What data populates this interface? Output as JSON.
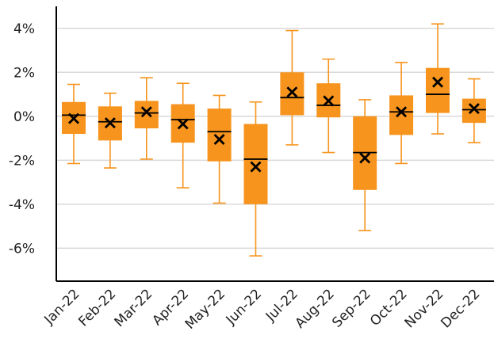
{
  "chart_data": {
    "type": "boxplot",
    "title": "",
    "xlabel": "",
    "ylabel": "",
    "ylim": [
      -7.5,
      5
    ],
    "yticks": [
      4,
      2,
      0,
      -2,
      -4,
      -6
    ],
    "ytick_labels": [
      "4%",
      "2%",
      "0%",
      "-2%",
      "-4%",
      "-6%"
    ],
    "grid": "horizontal",
    "categories": [
      "Jan-22",
      "Feb-22",
      "Mar-22",
      "Apr-22",
      "May-22",
      "Jun-22",
      "Jul-22",
      "Aug-22",
      "Sep-22",
      "Oct-22",
      "Nov-22",
      "Dec-22"
    ],
    "boxes": [
      {
        "min": -2.15,
        "q1": -0.8,
        "median": 0.05,
        "q3": 0.65,
        "max": 1.45,
        "mean": -0.1
      },
      {
        "min": -2.35,
        "q1": -1.1,
        "median": -0.25,
        "q3": 0.45,
        "max": 1.05,
        "mean": -0.3
      },
      {
        "min": -1.95,
        "q1": -0.55,
        "median": 0.15,
        "q3": 0.7,
        "max": 1.75,
        "mean": 0.2
      },
      {
        "min": -3.25,
        "q1": -1.2,
        "median": -0.15,
        "q3": 0.55,
        "max": 1.5,
        "mean": -0.35
      },
      {
        "min": -3.95,
        "q1": -2.05,
        "median": -0.7,
        "q3": 0.35,
        "max": 0.95,
        "mean": -1.05
      },
      {
        "min": -6.35,
        "q1": -4.0,
        "median": -1.95,
        "q3": -0.35,
        "max": 0.65,
        "mean": -2.3
      },
      {
        "min": -1.3,
        "q1": 0.05,
        "median": 0.85,
        "q3": 2.0,
        "max": 3.9,
        "mean": 1.1
      },
      {
        "min": -1.65,
        "q1": -0.05,
        "median": 0.5,
        "q3": 1.5,
        "max": 2.6,
        "mean": 0.7
      },
      {
        "min": -5.2,
        "q1": -3.35,
        "median": -1.65,
        "q3": 0.0,
        "max": 0.75,
        "mean": -1.9
      },
      {
        "min": -2.15,
        "q1": -0.85,
        "median": 0.2,
        "q3": 0.95,
        "max": 2.45,
        "mean": 0.2
      },
      {
        "min": -0.8,
        "q1": 0.15,
        "median": 1.0,
        "q3": 2.2,
        "max": 4.2,
        "mean": 1.55
      },
      {
        "min": -1.2,
        "q1": -0.3,
        "median": 0.3,
        "q3": 0.8,
        "max": 1.7,
        "mean": 0.35
      }
    ],
    "colors": {
      "box": "#f7941d",
      "whisker": "#f7941d",
      "median": "#000000",
      "mean": "#000000",
      "grid": "#d9d9d9",
      "axis": "#000000"
    }
  }
}
